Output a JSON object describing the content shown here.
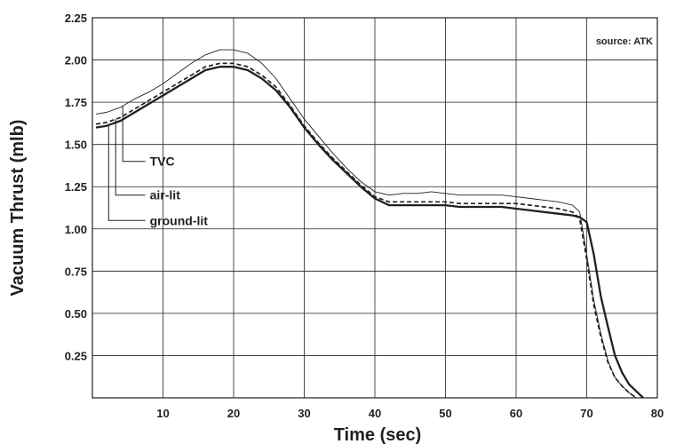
{
  "chart_data": {
    "type": "line",
    "xlabel": "Time (sec)",
    "ylabel": "Vacuum Thrust (mlb)",
    "annotation": "source: ATK",
    "xlim": [
      0,
      80
    ],
    "ylim": [
      0,
      2.25
    ],
    "xticks": [
      "10",
      "20",
      "30",
      "40",
      "50",
      "60",
      "70",
      "80"
    ],
    "yticks": [
      "0.25",
      "0.50",
      "0.75",
      "1.00",
      "1.25",
      "1.50",
      "1.75",
      "2.00",
      "2.25"
    ],
    "grid": true,
    "legend": "callout labels at left",
    "series": [
      {
        "name": "TVC",
        "style": "thin-solid",
        "color": "#231f20",
        "points": [
          [
            0.5,
            1.68
          ],
          [
            2,
            1.69
          ],
          [
            4,
            1.72
          ],
          [
            6,
            1.77
          ],
          [
            8,
            1.81
          ],
          [
            10,
            1.86
          ],
          [
            12,
            1.92
          ],
          [
            14,
            1.98
          ],
          [
            16,
            2.03
          ],
          [
            18,
            2.06
          ],
          [
            20,
            2.06
          ],
          [
            22,
            2.04
          ],
          [
            24,
            1.98
          ],
          [
            26,
            1.89
          ],
          [
            28,
            1.77
          ],
          [
            30,
            1.65
          ],
          [
            32,
            1.55
          ],
          [
            34,
            1.45
          ],
          [
            36,
            1.36
          ],
          [
            38,
            1.28
          ],
          [
            40,
            1.22
          ],
          [
            42,
            1.2
          ],
          [
            44,
            1.21
          ],
          [
            46,
            1.21
          ],
          [
            48,
            1.22
          ],
          [
            50,
            1.21
          ],
          [
            52,
            1.2
          ],
          [
            54,
            1.2
          ],
          [
            56,
            1.2
          ],
          [
            58,
            1.2
          ],
          [
            60,
            1.19
          ],
          [
            62,
            1.18
          ],
          [
            64,
            1.17
          ],
          [
            66,
            1.16
          ],
          [
            68,
            1.14
          ],
          [
            69,
            1.1
          ],
          [
            70,
            0.85
          ],
          [
            71,
            0.58
          ],
          [
            72,
            0.38
          ],
          [
            73,
            0.22
          ],
          [
            74,
            0.12
          ],
          [
            75,
            0.07
          ],
          [
            76,
            0.03
          ],
          [
            77,
            0.0
          ]
        ]
      },
      {
        "name": "air-lit",
        "style": "dashed",
        "color": "#231f20",
        "points": [
          [
            0.5,
            1.62
          ],
          [
            2,
            1.63
          ],
          [
            4,
            1.66
          ],
          [
            6,
            1.71
          ],
          [
            8,
            1.76
          ],
          [
            10,
            1.81
          ],
          [
            12,
            1.86
          ],
          [
            14,
            1.91
          ],
          [
            16,
            1.96
          ],
          [
            18,
            1.98
          ],
          [
            20,
            1.98
          ],
          [
            22,
            1.96
          ],
          [
            24,
            1.91
          ],
          [
            26,
            1.84
          ],
          [
            28,
            1.73
          ],
          [
            30,
            1.61
          ],
          [
            32,
            1.51
          ],
          [
            34,
            1.42
          ],
          [
            36,
            1.34
          ],
          [
            38,
            1.26
          ],
          [
            40,
            1.19
          ],
          [
            42,
            1.16
          ],
          [
            44,
            1.16
          ],
          [
            46,
            1.16
          ],
          [
            48,
            1.16
          ],
          [
            50,
            1.16
          ],
          [
            52,
            1.15
          ],
          [
            54,
            1.15
          ],
          [
            56,
            1.15
          ],
          [
            58,
            1.15
          ],
          [
            60,
            1.15
          ],
          [
            62,
            1.14
          ],
          [
            64,
            1.13
          ],
          [
            66,
            1.12
          ],
          [
            68,
            1.1
          ],
          [
            69,
            1.06
          ],
          [
            70,
            0.82
          ],
          [
            71,
            0.55
          ],
          [
            72,
            0.36
          ],
          [
            73,
            0.21
          ],
          [
            74,
            0.12
          ],
          [
            75,
            0.07
          ],
          [
            76,
            0.03
          ],
          [
            77,
            0.0
          ]
        ]
      },
      {
        "name": "ground-lit",
        "style": "thick-solid",
        "color": "#231f20",
        "points": [
          [
            0.5,
            1.6
          ],
          [
            2,
            1.61
          ],
          [
            4,
            1.64
          ],
          [
            6,
            1.69
          ],
          [
            8,
            1.74
          ],
          [
            10,
            1.79
          ],
          [
            12,
            1.84
          ],
          [
            14,
            1.89
          ],
          [
            16,
            1.94
          ],
          [
            18,
            1.96
          ],
          [
            20,
            1.96
          ],
          [
            22,
            1.94
          ],
          [
            24,
            1.89
          ],
          [
            26,
            1.82
          ],
          [
            28,
            1.72
          ],
          [
            30,
            1.6
          ],
          [
            32,
            1.5
          ],
          [
            34,
            1.41
          ],
          [
            36,
            1.33
          ],
          [
            38,
            1.25
          ],
          [
            40,
            1.18
          ],
          [
            42,
            1.14
          ],
          [
            44,
            1.14
          ],
          [
            46,
            1.14
          ],
          [
            48,
            1.14
          ],
          [
            50,
            1.14
          ],
          [
            52,
            1.13
          ],
          [
            54,
            1.13
          ],
          [
            56,
            1.13
          ],
          [
            58,
            1.13
          ],
          [
            60,
            1.12
          ],
          [
            62,
            1.11
          ],
          [
            64,
            1.1
          ],
          [
            66,
            1.09
          ],
          [
            68,
            1.08
          ],
          [
            69,
            1.07
          ],
          [
            70,
            1.04
          ],
          [
            71,
            0.85
          ],
          [
            72,
            0.6
          ],
          [
            73,
            0.42
          ],
          [
            74,
            0.25
          ],
          [
            75,
            0.15
          ],
          [
            76,
            0.08
          ],
          [
            77,
            0.04
          ],
          [
            78,
            0.0
          ]
        ]
      }
    ]
  }
}
